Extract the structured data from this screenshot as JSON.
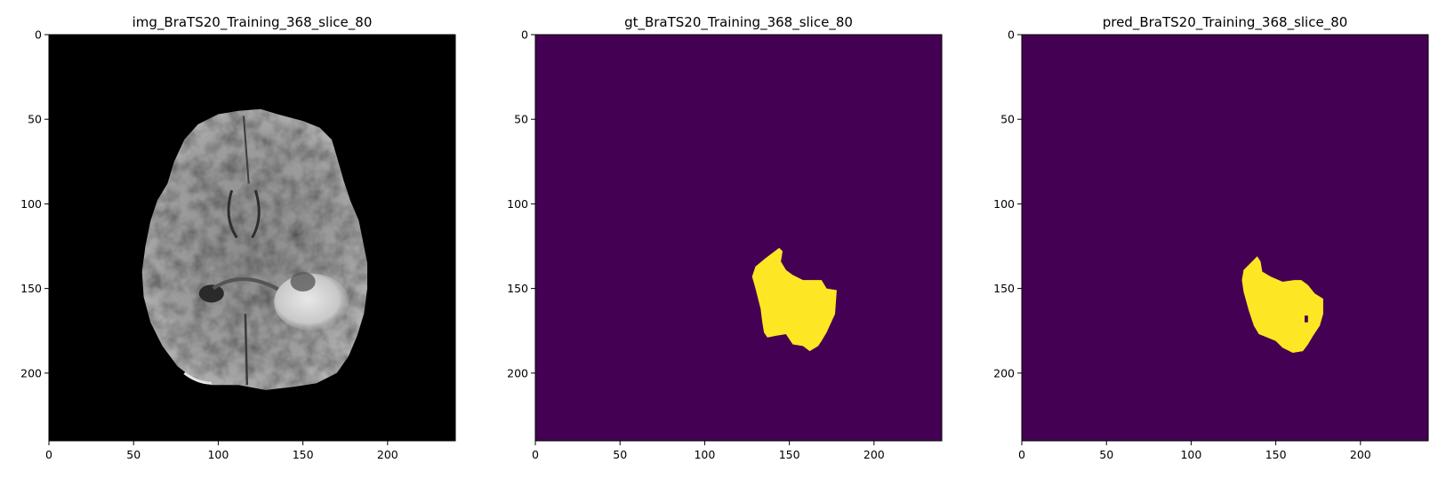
{
  "colors": {
    "background": "#440154",
    "mask": "#fde725",
    "image_background": "#000000",
    "axes_edge": "#000000"
  },
  "chart_data": [
    {
      "type": "heatmap",
      "title": "img_BraTS20_Training_368_slice_80",
      "content": "grayscale-mri-axial-slice",
      "colormap": "gray",
      "xlim": [
        0,
        240
      ],
      "ylim": [
        240,
        0
      ],
      "xticks": [
        0,
        50,
        100,
        150,
        200
      ],
      "yticks": [
        0,
        50,
        100,
        150,
        200
      ],
      "grid": false,
      "legend": "none"
    },
    {
      "type": "heatmap",
      "title": "gt_BraTS20_Training_368_slice_80",
      "content": "binary-segmentation-mask",
      "colormap": "viridis",
      "xlim": [
        0,
        240
      ],
      "ylim": [
        240,
        0
      ],
      "xticks": [
        0,
        50,
        100,
        150,
        200
      ],
      "yticks": [
        0,
        50,
        100,
        150,
        200
      ],
      "grid": false,
      "legend": "none",
      "mask_outline": [
        [
          144,
          126
        ],
        [
          146,
          128
        ],
        [
          145,
          134
        ],
        [
          148,
          139
        ],
        [
          152,
          142
        ],
        [
          158,
          145
        ],
        [
          164,
          145
        ],
        [
          169,
          145
        ],
        [
          172,
          150
        ],
        [
          178,
          151
        ],
        [
          177,
          165
        ],
        [
          172,
          176
        ],
        [
          169,
          181
        ],
        [
          167,
          184
        ],
        [
          162,
          187
        ],
        [
          158,
          184
        ],
        [
          152,
          183
        ],
        [
          148,
          177
        ],
        [
          142,
          178
        ],
        [
          137,
          179
        ],
        [
          135,
          176
        ],
        [
          134,
          170
        ],
        [
          133,
          162
        ],
        [
          130,
          150
        ],
        [
          128,
          143
        ],
        [
          130,
          137
        ],
        [
          136,
          132
        ],
        [
          140,
          129
        ]
      ]
    },
    {
      "type": "heatmap",
      "title": "pred_BraTS20_Training_368_slice_80",
      "content": "binary-segmentation-mask",
      "colormap": "viridis",
      "xlim": [
        0,
        240
      ],
      "ylim": [
        240,
        0
      ],
      "xticks": [
        0,
        50,
        100,
        150,
        200
      ],
      "yticks": [
        0,
        50,
        100,
        150,
        200
      ],
      "grid": false,
      "legend": "none",
      "mask_outline": [
        [
          139,
          131
        ],
        [
          141,
          134
        ],
        [
          142,
          140
        ],
        [
          147,
          143
        ],
        [
          154,
          146
        ],
        [
          161,
          145
        ],
        [
          165,
          145
        ],
        [
          169,
          148
        ],
        [
          173,
          153
        ],
        [
          178,
          156
        ],
        [
          178,
          165
        ],
        [
          176,
          172
        ],
        [
          172,
          178
        ],
        [
          169,
          183
        ],
        [
          166,
          187
        ],
        [
          160,
          188
        ],
        [
          154,
          185
        ],
        [
          150,
          181
        ],
        [
          145,
          179
        ],
        [
          140,
          177
        ],
        [
          137,
          172
        ],
        [
          134,
          163
        ],
        [
          131,
          152
        ],
        [
          130,
          145
        ],
        [
          131,
          139
        ],
        [
          134,
          136
        ],
        [
          137,
          133
        ]
      ],
      "mask_hole": [
        [
          167,
          166
        ],
        [
          169,
          166
        ],
        [
          169,
          170
        ],
        [
          167,
          170
        ]
      ]
    }
  ]
}
